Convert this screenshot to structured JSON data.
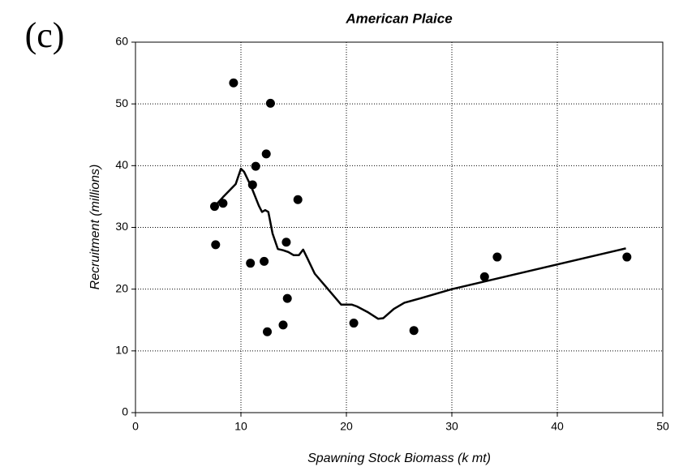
{
  "panel_label": "(c)",
  "chart_data": {
    "type": "scatter",
    "title": "American Plaice",
    "x_label": "Spawning Stock Biomass (k mt)",
    "y_label": "Recruitment (millions)",
    "xlim": [
      0,
      50
    ],
    "ylim": [
      0,
      60
    ],
    "xticks": [
      0,
      10,
      20,
      30,
      40,
      50
    ],
    "yticks": [
      0,
      10,
      20,
      30,
      40,
      50,
      60
    ],
    "grid": true,
    "series": [
      {
        "style": "markers",
        "color": "#000000",
        "x": [
          7.5,
          7.6,
          8.3,
          9.3,
          10.9,
          11.1,
          11.4,
          12.2,
          12.4,
          12.5,
          12.8,
          14.0,
          14.3,
          14.4,
          15.4,
          20.7,
          26.4,
          33.1,
          34.3,
          46.6
        ],
        "values": [
          33.4,
          27.2,
          33.9,
          53.4,
          24.2,
          36.9,
          39.9,
          24.5,
          41.9,
          13.1,
          50.1,
          14.2,
          27.6,
          18.5,
          34.5,
          14.5,
          13.3,
          22.0,
          25.2,
          25.2
        ]
      },
      {
        "style": "line",
        "color": "#000000",
        "x": [
          7.5,
          8.3,
          9.5,
          10,
          10.3,
          11,
          11.7,
          12,
          12.3,
          12.6,
          13,
          13.5,
          14,
          14.5,
          15,
          15.5,
          15.9,
          16.3,
          17,
          18,
          19.5,
          20.5,
          21,
          22,
          23,
          23.5,
          24.5,
          25.5,
          27,
          30,
          35,
          40,
          46.5
        ],
        "values": [
          33.4,
          34.9,
          37,
          39.5,
          39,
          36.5,
          33.5,
          32.5,
          32.8,
          32.5,
          29,
          26.5,
          26.3,
          26,
          25.5,
          25.5,
          26.4,
          25,
          22.5,
          20.5,
          17.5,
          17.5,
          17.2,
          16.3,
          15.2,
          15.3,
          16.8,
          17.8,
          18.5,
          20,
          22,
          24,
          26.6
        ]
      }
    ]
  }
}
